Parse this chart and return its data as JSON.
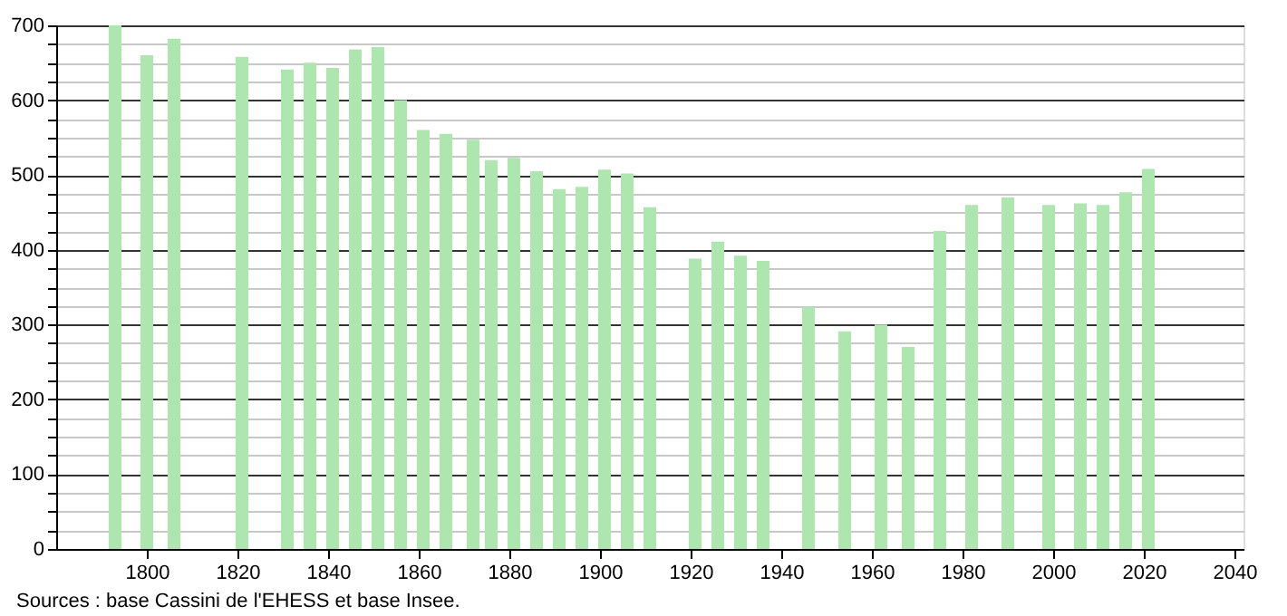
{
  "chart_data": {
    "type": "bar",
    "x": [
      1793,
      1800,
      1806,
      1821,
      1831,
      1836,
      1841,
      1846,
      1851,
      1856,
      1861,
      1866,
      1872,
      1876,
      1881,
      1886,
      1891,
      1896,
      1901,
      1906,
      1911,
      1921,
      1926,
      1931,
      1936,
      1946,
      1954,
      1962,
      1968,
      1975,
      1982,
      1990,
      1999,
      2006,
      2011,
      2016,
      2021
    ],
    "values": [
      700,
      660,
      682,
      658,
      641,
      650,
      643,
      668,
      671,
      600,
      560,
      555,
      547,
      520,
      523,
      505,
      481,
      484,
      507,
      502,
      457,
      388,
      411,
      392,
      385,
      324,
      291,
      300,
      270,
      425,
      460,
      470,
      460,
      462,
      460,
      477,
      508
    ],
    "color": "#aee6b0",
    "xlim": [
      1780,
      2042
    ],
    "xticks": [
      1800,
      1820,
      1840,
      1860,
      1880,
      1900,
      1920,
      1940,
      1960,
      1980,
      2000,
      2020,
      2040
    ],
    "ylim": [
      0,
      700
    ],
    "yticks": [
      0,
      {
        "value": 25,
        "label": null
      },
      {
        "value": 50,
        "label": null
      },
      {
        "value": 75,
        "label": null
      },
      100,
      {
        "value": 125,
        "label": null
      },
      {
        "value": 150,
        "label": null
      },
      {
        "value": 175,
        "label": null
      },
      200,
      {
        "value": 225,
        "label": null
      },
      {
        "value": 250,
        "label": null
      },
      {
        "value": 275,
        "label": null
      },
      300,
      {
        "value": 325,
        "label": null
      },
      {
        "value": 350,
        "label": null
      },
      {
        "value": 375,
        "label": null
      },
      400,
      {
        "value": 425,
        "label": null
      },
      {
        "value": 450,
        "label": null
      },
      {
        "value": 475,
        "label": null
      },
      500,
      {
        "value": 525,
        "label": null
      },
      {
        "value": 550,
        "label": null
      },
      {
        "value": 575,
        "label": null
      },
      600,
      {
        "value": 625,
        "label": null
      },
      {
        "value": 650,
        "label": null
      },
      {
        "value": 675,
        "label": null
      },
      700
    ],
    "grid": "y",
    "annotations": [
      "Sources : base Cassini de l'EHESS et base Insee."
    ]
  }
}
